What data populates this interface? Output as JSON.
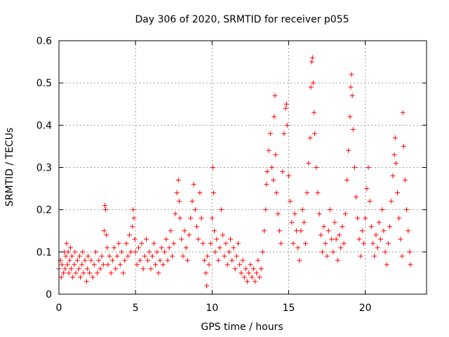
{
  "chart_data": {
    "type": "scatter",
    "title": "Day 306 of 2020, SRMTID for receiver p055",
    "xlabel": "GPS time / hours",
    "ylabel": "SRMTID / TECUs",
    "xlim": [
      0,
      24
    ],
    "ylim": [
      0,
      0.6
    ],
    "xticks": [
      0,
      5,
      10,
      15,
      20
    ],
    "yticks": [
      0,
      0.1,
      0.2,
      0.3,
      0.4,
      0.5,
      0.6
    ],
    "x_tick_labels": [
      "0",
      "5",
      "10",
      "15",
      "20"
    ],
    "y_tick_labels": [
      "0",
      "0.1",
      "0.2",
      "0.3",
      "0.4",
      "0.5",
      "0.6"
    ],
    "grid": true,
    "marker": "+",
    "color": "#ff0000",
    "series": [
      {
        "name": "SRMTID",
        "points": [
          [
            0.0,
            0.06
          ],
          [
            0.1,
            0.08
          ],
          [
            0.15,
            0.04
          ],
          [
            0.2,
            0.07
          ],
          [
            0.3,
            0.05
          ],
          [
            0.35,
            0.1
          ],
          [
            0.4,
            0.06
          ],
          [
            0.45,
            0.09
          ],
          [
            0.5,
            0.12
          ],
          [
            0.55,
            0.07
          ],
          [
            0.6,
            0.1
          ],
          [
            0.65,
            0.05
          ],
          [
            0.7,
            0.08
          ],
          [
            0.75,
            0.11
          ],
          [
            0.8,
            0.06
          ],
          [
            0.85,
            0.09
          ],
          [
            0.9,
            0.04
          ],
          [
            1.0,
            0.07
          ],
          [
            1.05,
            0.1
          ],
          [
            1.1,
            0.05
          ],
          [
            1.2,
            0.08
          ],
          [
            1.3,
            0.06
          ],
          [
            1.35,
            0.09
          ],
          [
            1.4,
            0.04
          ],
          [
            1.5,
            0.07
          ],
          [
            1.55,
            0.1
          ],
          [
            1.6,
            0.05
          ],
          [
            1.7,
            0.08
          ],
          [
            1.8,
            0.03
          ],
          [
            1.85,
            0.06
          ],
          [
            1.9,
            0.09
          ],
          [
            2.0,
            0.05
          ],
          [
            2.1,
            0.08
          ],
          [
            2.2,
            0.04
          ],
          [
            2.3,
            0.07
          ],
          [
            2.4,
            0.1
          ],
          [
            2.5,
            0.05
          ],
          [
            2.6,
            0.08
          ],
          [
            2.7,
            0.06
          ],
          [
            2.8,
            0.09
          ],
          [
            2.9,
            0.07
          ],
          [
            2.95,
            0.15
          ],
          [
            3.0,
            0.21
          ],
          [
            3.05,
            0.2
          ],
          [
            3.1,
            0.14
          ],
          [
            3.15,
            0.11
          ],
          [
            3.2,
            0.07
          ],
          [
            3.3,
            0.09
          ],
          [
            3.4,
            0.05
          ],
          [
            3.5,
            0.08
          ],
          [
            3.6,
            0.11
          ],
          [
            3.7,
            0.06
          ],
          [
            3.8,
            0.09
          ],
          [
            3.9,
            0.12
          ],
          [
            4.0,
            0.07
          ],
          [
            4.1,
            0.1
          ],
          [
            4.2,
            0.05
          ],
          [
            4.3,
            0.08
          ],
          [
            4.4,
            0.12
          ],
          [
            4.5,
            0.09
          ],
          [
            4.6,
            0.14
          ],
          [
            4.7,
            0.1
          ],
          [
            4.8,
            0.16
          ],
          [
            4.85,
            0.2
          ],
          [
            4.9,
            0.18
          ],
          [
            4.95,
            0.13
          ],
          [
            5.0,
            0.1
          ],
          [
            5.1,
            0.07
          ],
          [
            5.2,
            0.11
          ],
          [
            5.3,
            0.08
          ],
          [
            5.4,
            0.12
          ],
          [
            5.5,
            0.06
          ],
          [
            5.6,
            0.09
          ],
          [
            5.7,
            0.13
          ],
          [
            5.8,
            0.08
          ],
          [
            5.9,
            0.1
          ],
          [
            6.0,
            0.06
          ],
          [
            6.1,
            0.09
          ],
          [
            6.2,
            0.12
          ],
          [
            6.3,
            0.07
          ],
          [
            6.4,
            0.1
          ],
          [
            6.5,
            0.05
          ],
          [
            6.6,
            0.08
          ],
          [
            6.7,
            0.11
          ],
          [
            6.8,
            0.07
          ],
          [
            6.9,
            0.1
          ],
          [
            7.0,
            0.13
          ],
          [
            7.1,
            0.08
          ],
          [
            7.2,
            0.11
          ],
          [
            7.3,
            0.15
          ],
          [
            7.4,
            0.09
          ],
          [
            7.5,
            0.12
          ],
          [
            7.6,
            0.19
          ],
          [
            7.7,
            0.24
          ],
          [
            7.8,
            0.27
          ],
          [
            7.85,
            0.22
          ],
          [
            7.9,
            0.18
          ],
          [
            8.0,
            0.13
          ],
          [
            8.1,
            0.09
          ],
          [
            8.2,
            0.15
          ],
          [
            8.3,
            0.11
          ],
          [
            8.4,
            0.08
          ],
          [
            8.5,
            0.14
          ],
          [
            8.6,
            0.18
          ],
          [
            8.7,
            0.22
          ],
          [
            8.8,
            0.26
          ],
          [
            8.9,
            0.2
          ],
          [
            9.0,
            0.16
          ],
          [
            9.1,
            0.13
          ],
          [
            9.2,
            0.24
          ],
          [
            9.3,
            0.18
          ],
          [
            9.4,
            0.12
          ],
          [
            9.5,
            0.08
          ],
          [
            9.6,
            0.05
          ],
          [
            9.65,
            0.02
          ],
          [
            9.7,
            0.09
          ],
          [
            9.8,
            0.07
          ],
          [
            9.9,
            0.12
          ],
          [
            10.0,
            0.18
          ],
          [
            10.05,
            0.3
          ],
          [
            10.1,
            0.24
          ],
          [
            10.15,
            0.15
          ],
          [
            10.2,
            0.1
          ],
          [
            10.3,
            0.13
          ],
          [
            10.4,
            0.08
          ],
          [
            10.5,
            0.11
          ],
          [
            10.6,
            0.2
          ],
          [
            10.7,
            0.14
          ],
          [
            10.8,
            0.09
          ],
          [
            10.9,
            0.12
          ],
          [
            11.0,
            0.07
          ],
          [
            11.1,
            0.1
          ],
          [
            11.2,
            0.13
          ],
          [
            11.3,
            0.08
          ],
          [
            11.4,
            0.11
          ],
          [
            11.5,
            0.06
          ],
          [
            11.6,
            0.09
          ],
          [
            11.7,
            0.12
          ],
          [
            11.8,
            0.07
          ],
          [
            11.9,
            0.05
          ],
          [
            12.0,
            0.08
          ],
          [
            12.1,
            0.04
          ],
          [
            12.2,
            0.06
          ],
          [
            12.3,
            0.03
          ],
          [
            12.4,
            0.05
          ],
          [
            12.5,
            0.07
          ],
          [
            12.6,
            0.04
          ],
          [
            12.7,
            0.06
          ],
          [
            12.8,
            0.03
          ],
          [
            12.9,
            0.05
          ],
          [
            13.0,
            0.08
          ],
          [
            13.1,
            0.04
          ],
          [
            13.2,
            0.06
          ],
          [
            13.3,
            0.1
          ],
          [
            13.4,
            0.15
          ],
          [
            13.5,
            0.2
          ],
          [
            13.55,
            0.26
          ],
          [
            13.6,
            0.29
          ],
          [
            13.7,
            0.34
          ],
          [
            13.8,
            0.38
          ],
          [
            13.9,
            0.3
          ],
          [
            14.0,
            0.27
          ],
          [
            14.05,
            0.42
          ],
          [
            14.1,
            0.47
          ],
          [
            14.15,
            0.33
          ],
          [
            14.2,
            0.24
          ],
          [
            14.3,
            0.19
          ],
          [
            14.4,
            0.15
          ],
          [
            14.5,
            0.12
          ],
          [
            14.6,
            0.29
          ],
          [
            14.7,
            0.38
          ],
          [
            14.8,
            0.44
          ],
          [
            14.85,
            0.45
          ],
          [
            14.9,
            0.4
          ],
          [
            15.0,
            0.28
          ],
          [
            15.1,
            0.22
          ],
          [
            15.2,
            0.17
          ],
          [
            15.3,
            0.12
          ],
          [
            15.4,
            0.19
          ],
          [
            15.5,
            0.15
          ],
          [
            15.6,
            0.11
          ],
          [
            15.7,
            0.08
          ],
          [
            15.8,
            0.15
          ],
          [
            15.9,
            0.2
          ],
          [
            16.0,
            0.17
          ],
          [
            16.1,
            0.12
          ],
          [
            16.2,
            0.24
          ],
          [
            16.3,
            0.31
          ],
          [
            16.4,
            0.37
          ],
          [
            16.45,
            0.49
          ],
          [
            16.5,
            0.55
          ],
          [
            16.55,
            0.56
          ],
          [
            16.6,
            0.5
          ],
          [
            16.65,
            0.43
          ],
          [
            16.7,
            0.38
          ],
          [
            16.8,
            0.3
          ],
          [
            16.9,
            0.24
          ],
          [
            17.0,
            0.19
          ],
          [
            17.1,
            0.14
          ],
          [
            17.2,
            0.1
          ],
          [
            17.3,
            0.16
          ],
          [
            17.4,
            0.12
          ],
          [
            17.5,
            0.09
          ],
          [
            17.6,
            0.15
          ],
          [
            17.7,
            0.2
          ],
          [
            17.8,
            0.13
          ],
          [
            17.9,
            0.1
          ],
          [
            18.0,
            0.17
          ],
          [
            18.1,
            0.13
          ],
          [
            18.2,
            0.08
          ],
          [
            18.3,
            0.14
          ],
          [
            18.4,
            0.11
          ],
          [
            18.5,
            0.16
          ],
          [
            18.6,
            0.12
          ],
          [
            18.7,
            0.19
          ],
          [
            18.8,
            0.27
          ],
          [
            18.9,
            0.34
          ],
          [
            19.0,
            0.42
          ],
          [
            19.05,
            0.49
          ],
          [
            19.1,
            0.52
          ],
          [
            19.15,
            0.47
          ],
          [
            19.2,
            0.39
          ],
          [
            19.3,
            0.3
          ],
          [
            19.4,
            0.23
          ],
          [
            19.5,
            0.18
          ],
          [
            19.6,
            0.13
          ],
          [
            19.7,
            0.09
          ],
          [
            19.8,
            0.15
          ],
          [
            19.9,
            0.12
          ],
          [
            20.0,
            0.18
          ],
          [
            20.1,
            0.25
          ],
          [
            20.2,
            0.3
          ],
          [
            20.3,
            0.22
          ],
          [
            20.4,
            0.16
          ],
          [
            20.5,
            0.12
          ],
          [
            20.6,
            0.09
          ],
          [
            20.7,
            0.14
          ],
          [
            20.8,
            0.11
          ],
          [
            20.9,
            0.17
          ],
          [
            21.0,
            0.13
          ],
          [
            21.1,
            0.2
          ],
          [
            21.2,
            0.15
          ],
          [
            21.3,
            0.1
          ],
          [
            21.4,
            0.07
          ],
          [
            21.5,
            0.12
          ],
          [
            21.6,
            0.16
          ],
          [
            21.7,
            0.22
          ],
          [
            21.8,
            0.28
          ],
          [
            21.9,
            0.33
          ],
          [
            21.95,
            0.37
          ],
          [
            22.0,
            0.31
          ],
          [
            22.1,
            0.24
          ],
          [
            22.2,
            0.18
          ],
          [
            22.3,
            0.13
          ],
          [
            22.4,
            0.09
          ],
          [
            22.45,
            0.43
          ],
          [
            22.5,
            0.35
          ],
          [
            22.6,
            0.27
          ],
          [
            22.7,
            0.2
          ],
          [
            22.8,
            0.15
          ],
          [
            22.9,
            0.1
          ],
          [
            22.95,
            0.07
          ]
        ]
      }
    ]
  }
}
